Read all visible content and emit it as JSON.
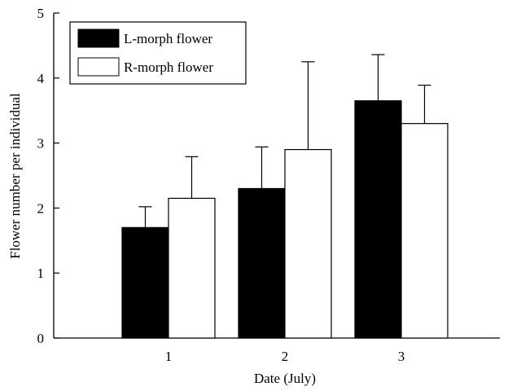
{
  "chart_data": {
    "type": "bar",
    "xlabel": "Date (July)",
    "ylabel": "Flower number per individual",
    "categories": [
      "1",
      "2",
      "3"
    ],
    "ylim": [
      0,
      5
    ],
    "yticks": [
      "0",
      "1",
      "2",
      "3",
      "4",
      "5"
    ],
    "legend_position": "top-left",
    "grid": false,
    "series": [
      {
        "name": "L-morph flower",
        "values": [
          1.7,
          2.3,
          3.65
        ],
        "error_upper": [
          2.02,
          2.94,
          4.36
        ],
        "color": "#000000"
      },
      {
        "name": "R-morph flower",
        "values": [
          2.15,
          2.9,
          3.3
        ],
        "error_upper": [
          2.79,
          4.25,
          3.89
        ],
        "color": "#ffffff"
      }
    ]
  }
}
